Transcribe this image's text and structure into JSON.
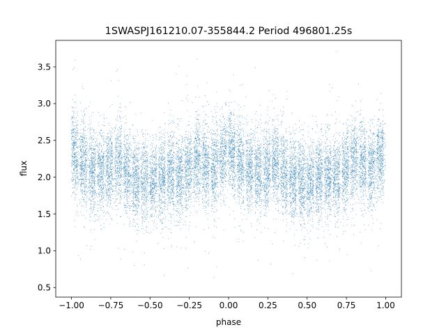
{
  "chart_data": {
    "type": "scatter",
    "title": "1SWASPJ161210.07-355844.2 Period 496801.25s",
    "xlabel": "phase",
    "ylabel": "flux",
    "xlim": [
      -1.1,
      1.1
    ],
    "ylim": [
      0.37,
      3.86
    ],
    "x_ticks": [
      -1.0,
      -0.75,
      -0.5,
      -0.25,
      0.0,
      0.25,
      0.5,
      0.75,
      1.0
    ],
    "x_tick_labels": [
      "−1.00",
      "−0.75",
      "−0.50",
      "−0.25",
      "0.00",
      "0.25",
      "0.50",
      "0.75",
      "1.00"
    ],
    "y_ticks": [
      0.5,
      1.0,
      1.5,
      2.0,
      2.5,
      3.0,
      3.5
    ],
    "y_tick_labels": [
      "0.5",
      "1.0",
      "1.5",
      "2.0",
      "2.5",
      "3.0",
      "3.5"
    ],
    "grid": false,
    "legend": "none",
    "marker_color": "#1f77b4",
    "series": [
      {
        "profile_phase": [
          0.0,
          0.1,
          0.2,
          0.3,
          0.4,
          0.5,
          0.6,
          0.7,
          0.8,
          0.9,
          1.0
        ],
        "profile_flux": [
          2.4,
          2.1,
          2.05,
          2.2,
          1.95,
          1.9,
          2.05,
          2.0,
          2.25,
          2.1,
          2.35
        ],
        "scatter_sigma": 0.28,
        "phase_range": [
          -1.0,
          1.0
        ],
        "flux_range": [
          0.5,
          3.8
        ],
        "approx_point_count": 16000
      }
    ]
  }
}
